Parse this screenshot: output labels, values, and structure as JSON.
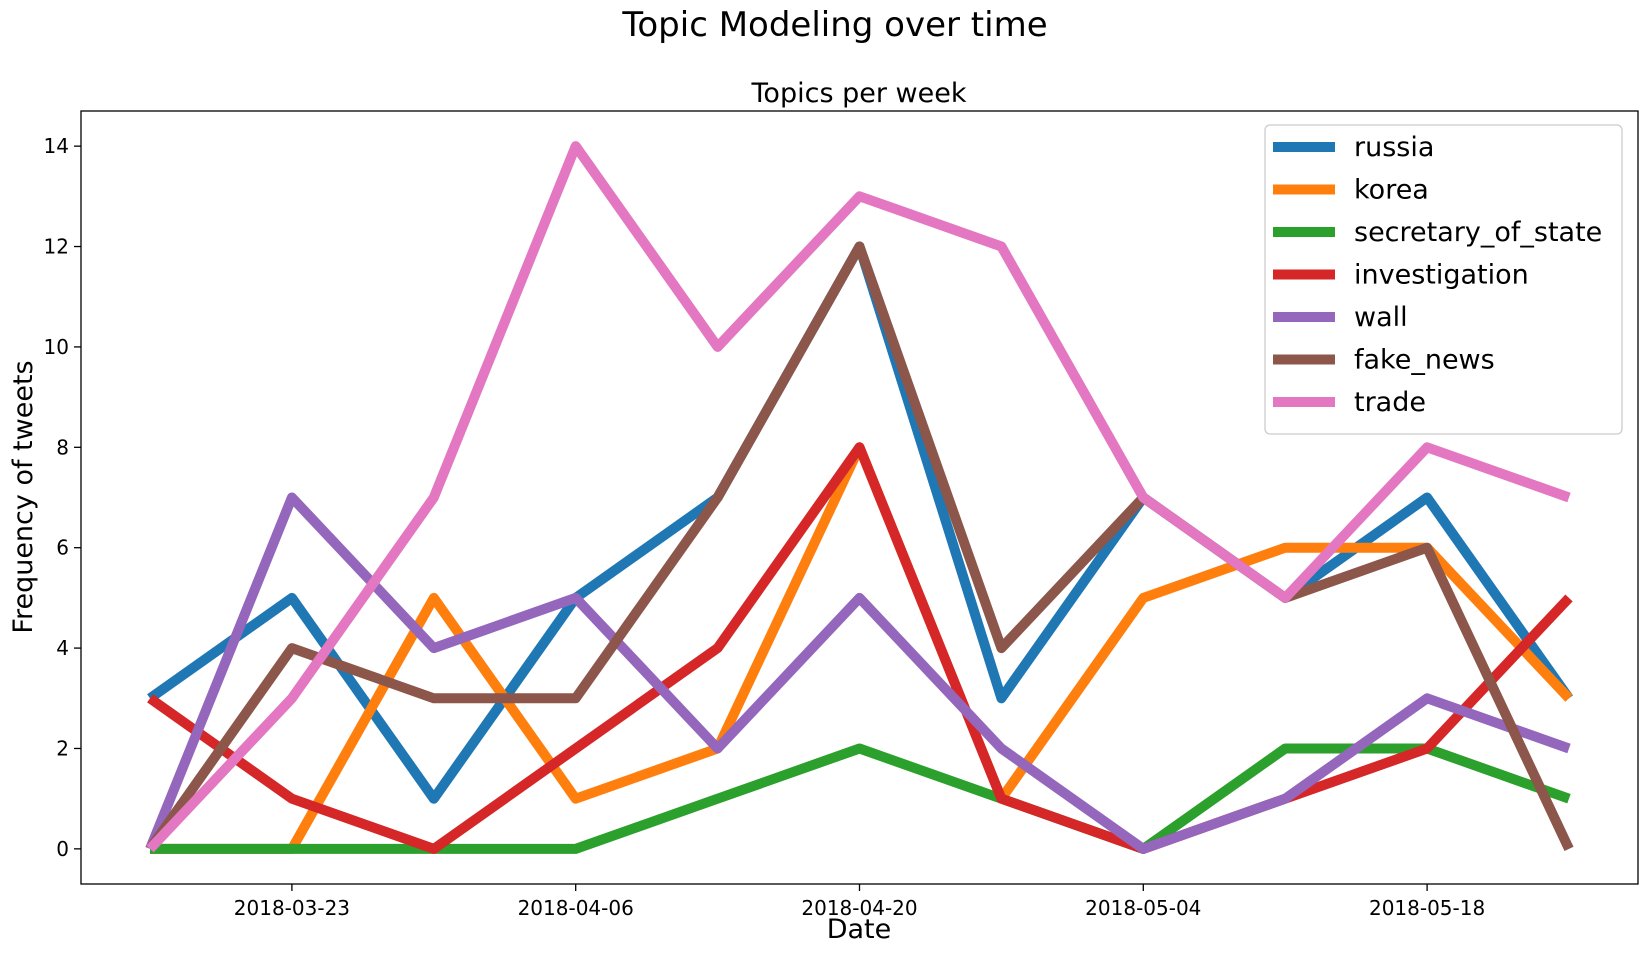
{
  "chart_data": {
    "type": "line",
    "suptitle": "Topic Modeling over time",
    "title": "Topics per week",
    "xlabel": "Date",
    "ylabel": "Frequency of tweets",
    "x": [
      "2018-03-16",
      "2018-03-23",
      "2018-03-30",
      "2018-04-06",
      "2018-04-13",
      "2018-04-20",
      "2018-04-27",
      "2018-05-04",
      "2018-05-11",
      "2018-05-18",
      "2018-05-25"
    ],
    "xticks": [
      "2018-03-23",
      "2018-04-06",
      "2018-04-20",
      "2018-05-04",
      "2018-05-18"
    ],
    "ylim": [
      -0.7,
      14.7
    ],
    "yticks": [
      "0",
      "2",
      "4",
      "6",
      "8",
      "10",
      "12",
      "14"
    ],
    "grid": false,
    "legend_position": "top-right",
    "series": [
      {
        "name": "russia",
        "color": "#1f77b4",
        "values": [
          3,
          5,
          1,
          5,
          7,
          12,
          3,
          7,
          5,
          7,
          3
        ]
      },
      {
        "name": "korea",
        "color": "#ff7f0e",
        "values": [
          0,
          0,
          5,
          1,
          2,
          8,
          1,
          5,
          6,
          6,
          3
        ]
      },
      {
        "name": "secretary_of_state",
        "color": "#2ca02c",
        "values": [
          0,
          0,
          0,
          0,
          1,
          2,
          1,
          0,
          2,
          2,
          1
        ]
      },
      {
        "name": "investigation",
        "color": "#d62728",
        "values": [
          3,
          1,
          0,
          2,
          4,
          8,
          1,
          0,
          1,
          2,
          5
        ]
      },
      {
        "name": "wall",
        "color": "#9467bd",
        "values": [
          0,
          7,
          4,
          5,
          2,
          5,
          2,
          0,
          1,
          3,
          2
        ]
      },
      {
        "name": "fake_news",
        "color": "#8c564b",
        "values": [
          0,
          4,
          3,
          3,
          7,
          12,
          4,
          7,
          5,
          6,
          0
        ]
      },
      {
        "name": "trade",
        "color": "#e377c2",
        "values": [
          0,
          3,
          7,
          14,
          10,
          13,
          12,
          7,
          5,
          8,
          7
        ]
      }
    ]
  }
}
